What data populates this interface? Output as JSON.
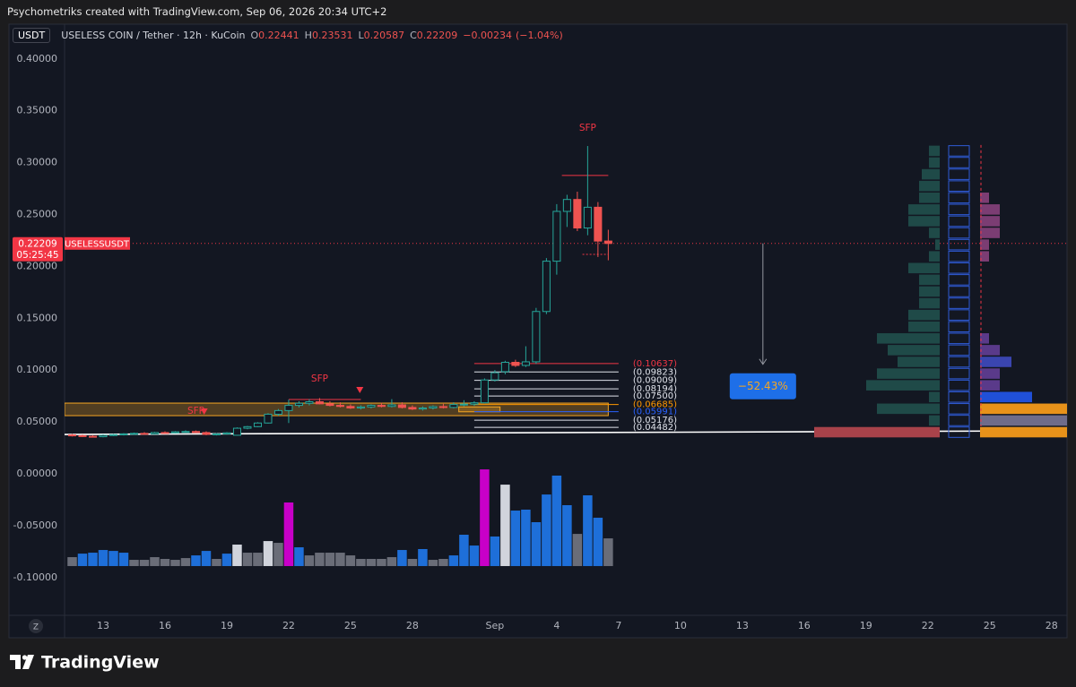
{
  "header": {
    "credit": "Psychometriks created with TradingView.com, Sep 06, 2026 20:34 UTC+2"
  },
  "legend": {
    "currency": "USDT",
    "symbol": "USELESS COIN / Tether · 12h · KuCoin",
    "ohlc_letters": [
      "O",
      "H",
      "L",
      "C"
    ],
    "change": {
      "value": -0.00234,
      "label": "−0.00234"
    },
    "change_pct": {
      "value": -1.04,
      "label": "(−1.04%)"
    }
  },
  "price_tag": {
    "symbol": "USELESSUSDT",
    "countdown": "05:25:45",
    "color": "#f23645"
  },
  "z_button": "Z",
  "footer": {
    "brand": "TradingView"
  },
  "chart_data": {
    "type": "candlestick",
    "up_color": "#26a69a",
    "down_color": "#ef5350",
    "grid": false,
    "xlim": [
      -0.74,
      96.5
    ],
    "xticks": [
      {
        "value": 3,
        "label": "13"
      },
      {
        "value": 9,
        "label": "16"
      },
      {
        "value": 15,
        "label": "19"
      },
      {
        "value": 21,
        "label": "22"
      },
      {
        "value": 27,
        "label": "25"
      },
      {
        "value": 33,
        "label": "28"
      },
      {
        "value": 41,
        "label": "Sep"
      },
      {
        "value": 47,
        "label": "4"
      },
      {
        "value": 53,
        "label": "7"
      },
      {
        "value": 59,
        "label": "10"
      },
      {
        "value": 65,
        "label": "13"
      },
      {
        "value": 71,
        "label": "16"
      },
      {
        "value": 77,
        "label": "19"
      },
      {
        "value": 83,
        "label": "22"
      },
      {
        "value": 89,
        "label": "25"
      },
      {
        "value": 95,
        "label": "28"
      }
    ],
    "ylim": [
      -0.1364,
      0.4136
    ],
    "yticks": [
      {
        "value": 0.4,
        "label": "0.40000"
      },
      {
        "value": 0.35,
        "label": "0.35000"
      },
      {
        "value": 0.3,
        "label": "0.30000"
      },
      {
        "value": 0.25,
        "label": "0.25000"
      },
      {
        "value": 0.2,
        "label": "0.20000"
      },
      {
        "value": 0.15,
        "label": "0.15000"
      },
      {
        "value": 0.1,
        "label": "0.10000"
      },
      {
        "value": 0.05,
        "label": "0.05000"
      },
      {
        "value": 0,
        "label": "0.00000"
      },
      {
        "value": -0.05,
        "label": "-0.05000"
      },
      {
        "value": -0.1,
        "label": "-0.10000"
      }
    ],
    "open": [
      0.0375,
      0.0368,
      0.0362,
      0.0358,
      0.0372,
      0.0378,
      0.0385,
      0.039,
      0.0385,
      0.0398,
      0.0395,
      0.0405,
      0.0408,
      0.0398,
      0.038,
      0.0385,
      0.0372,
      0.044,
      0.0455,
      0.049,
      0.0575,
      0.061,
      0.066,
      0.068,
      0.0695,
      0.0675,
      0.066,
      0.065,
      0.0635,
      0.0645,
      0.066,
      0.065,
      0.0665,
      0.064,
      0.0625,
      0.0635,
      0.0648,
      0.064,
      0.0668,
      0.0672,
      0.0685,
      0.0905,
      0.0985,
      0.1075,
      0.1045,
      0.108,
      0.1565,
      0.205,
      0.253,
      0.2645,
      0.237,
      0.257,
      0.22441
    ],
    "high": [
      0.0385,
      0.0378,
      0.0372,
      0.038,
      0.0385,
      0.0392,
      0.0398,
      0.0402,
      0.0405,
      0.041,
      0.0412,
      0.042,
      0.0418,
      0.041,
      0.0392,
      0.0402,
      0.0448,
      0.0462,
      0.0498,
      0.0585,
      0.0625,
      0.0715,
      0.07,
      0.072,
      0.073,
      0.07,
      0.069,
      0.067,
      0.066,
      0.067,
      0.0685,
      0.072,
      0.069,
      0.066,
      0.065,
      0.066,
      0.0675,
      0.069,
      0.071,
      0.07,
      0.092,
      0.1,
      0.109,
      0.11,
      0.123,
      0.16,
      0.208,
      0.26,
      0.269,
      0.272,
      0.316,
      0.262,
      0.23531
    ],
    "low": [
      0.036,
      0.0355,
      0.035,
      0.0352,
      0.0365,
      0.037,
      0.0378,
      0.038,
      0.038,
      0.0388,
      0.039,
      0.0398,
      0.0392,
      0.0372,
      0.037,
      0.0378,
      0.0368,
      0.043,
      0.045,
      0.0485,
      0.056,
      0.049,
      0.064,
      0.066,
      0.067,
      0.065,
      0.064,
      0.0625,
      0.062,
      0.063,
      0.064,
      0.064,
      0.063,
      0.0615,
      0.061,
      0.062,
      0.063,
      0.063,
      0.065,
      0.0655,
      0.068,
      0.089,
      0.096,
      0.103,
      0.103,
      0.106,
      0.154,
      0.192,
      0.238,
      0.234,
      0.23,
      0.209,
      0.20587
    ],
    "close": [
      0.0368,
      0.0362,
      0.0358,
      0.0372,
      0.0378,
      0.0385,
      0.039,
      0.0385,
      0.0398,
      0.0395,
      0.0405,
      0.0408,
      0.0398,
      0.038,
      0.0385,
      0.0395,
      0.044,
      0.0455,
      0.049,
      0.0575,
      0.061,
      0.066,
      0.068,
      0.0695,
      0.0675,
      0.066,
      0.065,
      0.0635,
      0.0645,
      0.066,
      0.065,
      0.0665,
      0.064,
      0.0625,
      0.0635,
      0.0648,
      0.064,
      0.0668,
      0.0672,
      0.0685,
      0.0905,
      0.0975,
      0.1075,
      0.1045,
      0.108,
      0.1565,
      0.205,
      0.253,
      0.2645,
      0.237,
      0.257,
      0.2244,
      0.22209
    ],
    "volume_bars": {
      "base": -0.0889,
      "values": [
        -0.0803,
        -0.0769,
        -0.076,
        -0.0734,
        -0.0743,
        -0.076,
        -0.0829,
        -0.0829,
        -0.0803,
        -0.082,
        -0.0829,
        -0.0812,
        -0.0786,
        -0.0743,
        -0.082,
        -0.0769,
        -0.0682,
        -0.076,
        -0.076,
        -0.0648,
        -0.0665,
        -0.0276,
        -0.0708,
        -0.0786,
        -0.076,
        -0.076,
        -0.076,
        -0.0786,
        -0.082,
        -0.082,
        -0.082,
        -0.0803,
        -0.0734,
        -0.082,
        -0.0725,
        -0.0829,
        -0.082,
        -0.0786,
        -0.0587,
        -0.0691,
        0.0043,
        -0.0604,
        -0.0104,
        -0.0354,
        -0.0345,
        -0.0466,
        -0.0199,
        -0.0017,
        -0.0302,
        -0.0579,
        -0.0207,
        -0.0423,
        -0.0622
      ],
      "colors": [
        "#6a6d78",
        "#1e6fd9",
        "#1e6fd9",
        "#1e6fd9",
        "#1e6fd9",
        "#1e6fd9",
        "#6a6d78",
        "#6a6d78",
        "#6a6d78",
        "#6a6d78",
        "#6a6d78",
        "#6a6d78",
        "#1e6fd9",
        "#1e6fd9",
        "#6a6d78",
        "#1e6fd9",
        "#d1d4dc",
        "#6a6d78",
        "#6a6d78",
        "#d1d4dc",
        "#6a6d78",
        "#c800c8",
        "#1e6fd9",
        "#6a6d78",
        "#6a6d78",
        "#6a6d78",
        "#6a6d78",
        "#6a6d78",
        "#6a6d78",
        "#6a6d78",
        "#6a6d78",
        "#6a6d78",
        "#1e6fd9",
        "#6a6d78",
        "#1e6fd9",
        "#6a6d78",
        "#6a6d78",
        "#1e6fd9",
        "#1e6fd9",
        "#1e6fd9",
        "#c800c8",
        "#1e6fd9",
        "#d1d4dc",
        "#1e6fd9",
        "#1e6fd9",
        "#1e6fd9",
        "#1e6fd9",
        "#1e6fd9",
        "#1e6fd9",
        "#6a6d78",
        "#1e6fd9",
        "#1e6fd9",
        "#6a6d78"
      ]
    },
    "levels": [
      {
        "value": 0.10637,
        "label": "(0.10637)",
        "color": "#f23645"
      },
      {
        "value": 0.09823,
        "label": "(0.09823)",
        "color": "#e0e3eb"
      },
      {
        "value": 0.09009,
        "label": "(0.09009)",
        "color": "#e0e3eb"
      },
      {
        "value": 0.08194,
        "label": "(0.08194)",
        "color": "#e0e3eb"
      },
      {
        "value": 0.075,
        "label": "(0.07500)",
        "color": "#e0e3eb"
      },
      {
        "value": 0.06685,
        "label": "(0.06685)",
        "color": "#ff9800"
      },
      {
        "value": 0.05991,
        "label": "(0.05991)",
        "color": "#2962ff"
      },
      {
        "value": 0.05176,
        "label": "(0.05176)",
        "color": "#e0e3eb"
      },
      {
        "value": 0.04482,
        "label": "(0.04482)",
        "color": "#e0e3eb"
      }
    ],
    "levels_x": [
      39,
      53
    ],
    "zones": [
      {
        "x": [
          -0.74,
          52
        ],
        "y": [
          0.0561,
          0.0682
        ],
        "color": "#f5a623"
      },
      {
        "x": [
          37.5,
          41.5
        ],
        "y": [
          0.0598,
          0.0645
        ],
        "color": "#f5a623"
      }
    ],
    "lines": [
      {
        "x": [
          -0.74,
          96.5
        ],
        "y": [
          0.038,
          0.0415
        ],
        "color": "#ffffff",
        "dash": false
      },
      {
        "x": [
          47.5,
          52
        ],
        "y": [
          0.2876,
          0.2876
        ],
        "color": "#f23645",
        "dash": false
      },
      {
        "x": [
          49.5,
          52
        ],
        "y": [
          0.2116,
          0.2116
        ],
        "color": "#f23645",
        "dash": true
      },
      {
        "x": [
          21,
          28
        ],
        "y": [
          0.0717,
          0.0717
        ],
        "color": "#f23645",
        "dash": false
      }
    ],
    "annotations": [
      {
        "text": "SFP",
        "x": 50,
        "y": 0.3333
      },
      {
        "text": "SFP",
        "x": 24,
        "y": 0.0915
      },
      {
        "text": "SFP",
        "x": 12,
        "y": 0.0605
      }
    ],
    "markers": [
      {
        "x": 27.9,
        "y": 0.0812
      },
      {
        "x": 12.8,
        "y": 0.0605
      }
    ],
    "measure": {
      "x": 67,
      "y": [
        0.2221,
        0.1056
      ],
      "change": {
        "value": -52.43,
        "label": "−52.43%"
      }
    },
    "volume_profile": {
      "bins": [
        0.0345,
        0.0458,
        0.0571,
        0.0684,
        0.0797,
        0.091,
        0.1023,
        0.1136,
        0.1249,
        0.1362,
        0.1475,
        0.1588,
        0.1701,
        0.1814,
        0.1927,
        0.204,
        0.2153,
        0.2266,
        0.2379,
        0.2492,
        0.2605,
        0.2718,
        0.2831,
        0.2944,
        0.3057,
        0.317
      ],
      "left": [
        140,
        12,
        70,
        12,
        82,
        70,
        47,
        58,
        70,
        35,
        35,
        23,
        23,
        23,
        35,
        12,
        5,
        12,
        35,
        35,
        23,
        23,
        20,
        12,
        12
      ],
      "left_colors": [
        "#a8424a",
        "#1f4a48",
        "#1f4a48",
        "#1f4a48",
        "#1f4a48",
        "#1f4a48",
        "#1f4a48",
        "#1f4a48",
        "#1f4a48",
        "#1f4a48",
        "#1f4a48",
        "#1f4a48",
        "#1f4a48",
        "#1f4a48",
        "#1f4a48",
        "#1f4a48",
        "#1f4a48",
        "#1f4a48",
        "#1f4a48",
        "#1f4a48",
        "#1f4a48",
        "#1f4a48",
        "#1f4a48",
        "#1f4a48",
        "#1f4a48"
      ],
      "right": [
        97,
        97,
        97,
        58,
        22,
        22,
        35,
        22,
        10,
        0,
        0,
        0,
        0,
        0,
        0,
        10,
        10,
        22,
        22,
        22,
        10,
        0,
        0,
        0,
        0
      ],
      "right_colors": [
        "#e8921a",
        "#6f6c8a",
        "#e8921a",
        "#2050d8",
        "#5a3a8a",
        "#5a3a8a",
        "#3a45b0",
        "#5a3a8a",
        "#5a3a8a",
        "#5a3a8a",
        "#5a3a8a",
        "#5a3a8a",
        "#5a3a8a",
        "#5a3a8a",
        "#5a3a8a",
        "#7b3d73",
        "#7b3d73",
        "#7b3d73",
        "#7b3d73",
        "#7b3d73",
        "#7b3d73",
        "#7b3d73",
        "#7b3d73",
        "#7b3d73",
        "#7b3d73"
      ]
    }
  }
}
